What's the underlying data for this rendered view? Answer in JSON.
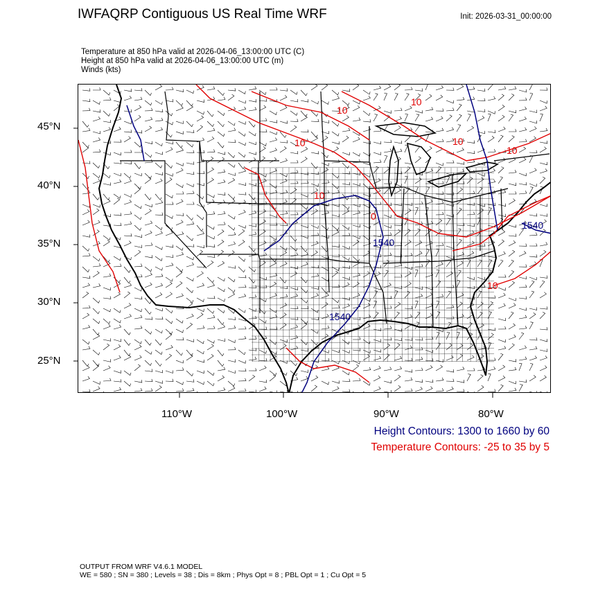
{
  "header": {
    "title": "IWFAQRP Contiguous US Real Time WRF",
    "init": "Init: 2026-03-31_00:00:00"
  },
  "fields": [
    "Temperature at 850 hPa valid at 2026-04-06_13:00:00 UTC   (C)",
    "Height at 850 hPa valid at 2026-04-06_13:00:00 UTC   (m)",
    "Winds   (kts)"
  ],
  "axes": {
    "lat_labels": [
      "45°N",
      "40°N",
      "35°N",
      "30°N",
      "25°N"
    ],
    "lon_labels": [
      "110°W",
      "100°W",
      "90°W",
      "80°W"
    ]
  },
  "contour_labels": {
    "temperature": [
      "10",
      "10",
      "10",
      "10",
      "10",
      "10",
      "10",
      "0"
    ],
    "height": [
      "1540",
      "1540",
      "1540"
    ]
  },
  "legend": {
    "height": "Height Contours: 1300 to 1660 by 60",
    "temperature": "Temperature Contours: -25 to 35 by 5"
  },
  "footer": {
    "line1": "OUTPUT FROM WRF V4.6.1 MODEL",
    "line2": "WE = 580 ; SN = 380 ; Levels = 38 ; Dis = 8km ; Phys Opt = 8 ; PBL Opt = 1 ; Cu Opt = 5"
  },
  "colors": {
    "temperature": "#e00000",
    "height": "#00007f",
    "boundary": "#000000"
  }
}
